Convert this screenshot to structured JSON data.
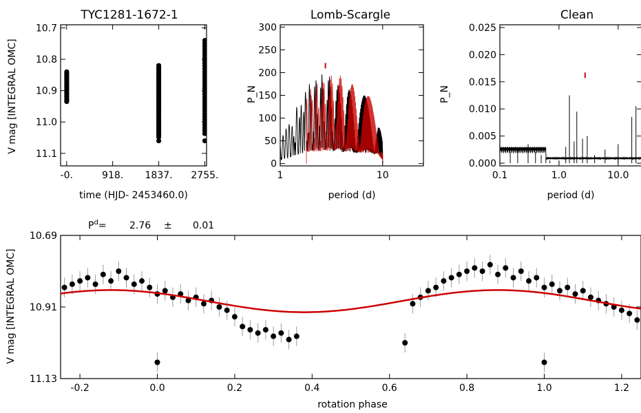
{
  "chart_data": [
    {
      "type": "scatter",
      "title": "TYC1281-1672-1",
      "xlabel": "time (HJD- 2453460.0)",
      "ylabel": "V mag [INTEGRAL OMC]",
      "xlim": [
        -120,
        2790
      ],
      "ylim": [
        11.14,
        10.69
      ],
      "xticks": [
        0,
        918,
        1837,
        2755
      ],
      "xtick_labels": [
        "-0.",
        "918.",
        "1837.",
        "2755."
      ],
      "yticks": [
        10.7,
        10.8,
        10.9,
        11.0,
        11.1
      ],
      "ytick_labels": [
        "10.7",
        "10.8",
        "10.9",
        "11.0",
        "11.1"
      ],
      "series": [
        {
          "color": "#000000",
          "x": [
            2,
            2,
            2,
            2,
            2,
            2,
            2,
            2,
            2,
            2,
            2,
            2,
            2,
            2,
            2,
            2,
            2,
            2,
            2,
            2
          ],
          "y": [
            10.84,
            10.845,
            10.85,
            10.855,
            10.86,
            10.865,
            10.87,
            10.875,
            10.88,
            10.885,
            10.89,
            10.895,
            10.9,
            10.905,
            10.91,
            10.915,
            10.92,
            10.925,
            10.93,
            10.935
          ]
        },
        {
          "color": "#000000",
          "x": [
            1837,
            1837,
            1837,
            1837,
            1837,
            1837,
            1837,
            1837,
            1837,
            1837,
            1837,
            1837,
            1837,
            1837,
            1837,
            1837,
            1837,
            1837,
            1837,
            1837,
            1837,
            1837,
            1837,
            1837,
            1837,
            1837,
            1837,
            1837,
            1837,
            1837,
            1837,
            1837,
            1837,
            1837,
            1837,
            1837,
            1837,
            1837,
            1837,
            1837
          ],
          "y": [
            10.82,
            10.826,
            10.832,
            10.838,
            10.844,
            10.85,
            10.856,
            10.862,
            10.868,
            10.874,
            10.88,
            10.886,
            10.892,
            10.898,
            10.904,
            10.91,
            10.916,
            10.922,
            10.928,
            10.934,
            10.94,
            10.946,
            10.952,
            10.958,
            10.964,
            10.97,
            10.976,
            10.982,
            10.988,
            10.994,
            11.0,
            11.006,
            11.012,
            11.018,
            11.024,
            11.03,
            11.036,
            11.042,
            11.048,
            11.06
          ]
        },
        {
          "color": "#000000",
          "x": [
            2755,
            2755,
            2755,
            2755,
            2755,
            2755,
            2755,
            2755,
            2755,
            2755,
            2755,
            2755,
            2755,
            2755,
            2755,
            2755,
            2755,
            2755,
            2755,
            2755,
            2755,
            2755,
            2755,
            2755,
            2755,
            2755,
            2755,
            2755,
            2755,
            2755,
            2755,
            2755,
            2755,
            2755,
            2755
          ],
          "y": [
            10.74,
            10.749,
            10.758,
            10.767,
            10.776,
            10.785,
            10.794,
            10.803,
            10.812,
            10.821,
            10.83,
            10.839,
            10.848,
            10.857,
            10.866,
            10.875,
            10.884,
            10.893,
            10.902,
            10.911,
            10.92,
            10.929,
            10.938,
            10.947,
            10.956,
            10.965,
            10.974,
            10.983,
            10.992,
            11.001,
            11.01,
            11.019,
            11.028,
            11.037,
            11.06
          ]
        }
      ]
    },
    {
      "type": "line",
      "title": "Lomb-Scargle",
      "xlabel": "period (d)",
      "ylabel": "P_N",
      "xscale": "log",
      "xlim": [
        1,
        25
      ],
      "ylim": [
        -5,
        305
      ],
      "xticks": [
        1,
        10
      ],
      "xtick_labels": [
        "1",
        "10"
      ],
      "yticks": [
        0,
        50,
        100,
        150,
        200,
        250,
        300
      ],
      "ytick_labels": [
        "0",
        "50",
        "100",
        "150",
        "200",
        "250",
        "300"
      ],
      "peak_marker": {
        "x": 2.76,
        "y": 215,
        "color": "#cc0000"
      },
      "series": [
        {
          "color": "#000000",
          "x": [
            1.0,
            1.1,
            1.2,
            1.3,
            1.4,
            1.5,
            1.6,
            1.7,
            1.8,
            1.9,
            2.0,
            2.2,
            2.5,
            2.8,
            3.2,
            3.6,
            4.0,
            4.5,
            5.0,
            5.6,
            6.2,
            7.0,
            8.0,
            9.0,
            10.0
          ],
          "y": [
            50,
            70,
            85,
            100,
            120,
            135,
            150,
            160,
            170,
            180,
            185,
            190,
            195,
            200,
            185,
            175,
            170,
            165,
            160,
            155,
            150,
            150,
            145,
            140,
            50
          ]
        },
        {
          "color": "#cc0000",
          "x": [
            1.8,
            2.0,
            2.2,
            2.5,
            2.8,
            3.2,
            3.6,
            4.0,
            4.5,
            5.0,
            5.6,
            6.2,
            7.0,
            8.0,
            9.0,
            10.0
          ],
          "y": [
            160,
            170,
            175,
            180,
            190,
            195,
            200,
            190,
            180,
            175,
            170,
            160,
            150,
            145,
            140,
            45
          ]
        }
      ]
    },
    {
      "type": "line",
      "title": "Clean",
      "xlabel": "period (d)",
      "ylabel": "P_N",
      "xscale": "log",
      "xlim": [
        0.1,
        25
      ],
      "ylim": [
        -0.0005,
        0.0255
      ],
      "xticks": [
        0.1,
        1.0,
        10.0
      ],
      "xtick_labels": [
        "0.1",
        "1.0",
        "10.0"
      ],
      "yticks": [
        0.0,
        0.005,
        0.01,
        0.015,
        0.02,
        0.025
      ],
      "ytick_labels": [
        "0.000",
        "0.005",
        "0.010",
        "0.015",
        "0.020",
        "0.025"
      ],
      "peak_marker": {
        "x": 2.76,
        "y": 0.0162,
        "color": "#cc0000"
      },
      "series": [
        {
          "color": "#000000",
          "x": [
            0.1,
            0.15,
            0.2,
            0.3,
            0.4,
            0.5,
            0.6,
            0.7,
            1.0,
            1.3,
            1.5,
            1.8,
            2.0,
            2.5,
            3.0,
            4.0,
            6.0,
            10.0,
            17.0,
            20.0,
            25.0
          ],
          "y": [
            0.0015,
            0.002,
            0.0025,
            0.0035,
            0.002,
            0.0015,
            0.001,
            0.0005,
            0.0005,
            0.003,
            0.0125,
            0.004,
            0.0095,
            0.0045,
            0.005,
            0.0015,
            0.0025,
            0.0035,
            0.0085,
            0.0105,
            0.0012
          ]
        }
      ]
    },
    {
      "type": "scatter",
      "header_label": "P",
      "header_superscript": "d",
      "header_eq": "=",
      "period": "2.76",
      "plusminus": "±",
      "period_error": "0.01",
      "xlabel": "rotation phase",
      "ylabel": "V mag [INTEGRAL OMC]",
      "xlim": [
        -0.25,
        1.25
      ],
      "ylim": [
        11.13,
        10.69
      ],
      "xticks": [
        -0.2,
        0.0,
        0.2,
        0.4,
        0.6,
        0.8,
        1.0,
        1.2
      ],
      "xtick_labels": [
        "-0.2",
        "0.0",
        "0.2",
        "0.4",
        "0.6",
        "0.8",
        "1.0",
        "1.2"
      ],
      "yticks": [
        10.69,
        10.91,
        11.13
      ],
      "ytick_labels": [
        "10.69",
        "10.91",
        "11.13"
      ],
      "fit": {
        "color": "#cc0000",
        "mean": 10.892,
        "amplitude": 0.034,
        "phase_of_max": -0.12
      },
      "series": [
        {
          "color": "#000000",
          "errorbar_color": "#999999",
          "x": [
            -0.24,
            -0.22,
            -0.2,
            -0.18,
            -0.16,
            -0.14,
            -0.12,
            -0.1,
            -0.08,
            -0.06,
            -0.04,
            -0.02,
            0.0,
            0.02,
            0.04,
            0.06,
            0.08,
            0.1,
            0.12,
            0.14,
            0.16,
            0.18,
            0.2,
            0.22,
            0.24,
            0.26,
            0.28,
            0.3,
            0.32,
            0.34,
            0.36,
            0.0,
            0.64,
            0.66,
            0.68,
            0.7,
            0.72,
            0.74,
            0.76,
            0.78,
            0.8,
            0.82,
            0.84,
            0.86,
            0.88,
            0.9,
            0.92,
            0.94,
            0.96,
            0.98,
            1.0,
            1.02,
            1.04,
            1.06,
            1.08,
            1.1,
            1.12,
            1.14,
            1.16,
            1.18,
            1.2,
            1.22,
            1.24,
            1.0
          ],
          "y": [
            10.85,
            10.84,
            10.83,
            10.82,
            10.84,
            10.81,
            10.83,
            10.8,
            10.82,
            10.84,
            10.83,
            10.85,
            10.87,
            10.86,
            10.88,
            10.87,
            10.89,
            10.88,
            10.9,
            10.89,
            10.91,
            10.92,
            10.94,
            10.97,
            10.98,
            10.99,
            10.98,
            11.0,
            10.99,
            11.01,
            11.0,
            11.08,
            11.02,
            10.9,
            10.88,
            10.86,
            10.85,
            10.83,
            10.82,
            10.81,
            10.8,
            10.79,
            10.8,
            10.78,
            10.81,
            10.79,
            10.82,
            10.8,
            10.83,
            10.82,
            10.85,
            10.84,
            10.86,
            10.85,
            10.87,
            10.86,
            10.88,
            10.89,
            10.9,
            10.91,
            10.92,
            10.93,
            10.95,
            11.08
          ]
        }
      ]
    }
  ]
}
